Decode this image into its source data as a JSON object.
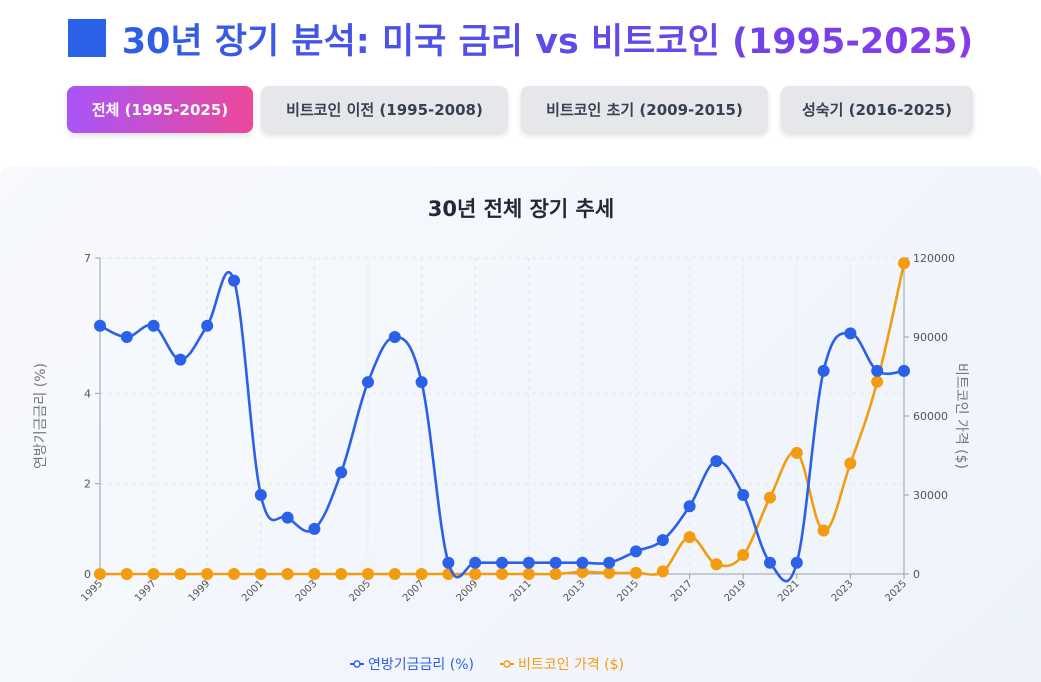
{
  "header": {
    "title": "30년 장기 분석: 미국 금리 vs 비트코인 (1995-2025)",
    "accent": "#2b61e8"
  },
  "tabs": [
    {
      "label": "전체 (1995-2025)",
      "active": true
    },
    {
      "label": "비트코인 이전 (1995-2008)",
      "active": false
    },
    {
      "label": "비트코인 초기 (2009-2015)",
      "active": false
    },
    {
      "label": "성숙기 (2016-2025)",
      "active": false
    }
  ],
  "chart_data": {
    "type": "line",
    "title": "30년 전체 장기 추세",
    "x": [
      1995,
      1996,
      1997,
      1998,
      1999,
      2000,
      2001,
      2002,
      2003,
      2004,
      2005,
      2006,
      2007,
      2008,
      2009,
      2010,
      2011,
      2012,
      2013,
      2014,
      2015,
      2016,
      2017,
      2018,
      2019,
      2020,
      2021,
      2022,
      2023,
      2024,
      2025
    ],
    "x_tick_labels": [
      "1995",
      "1997",
      "1999",
      "2001",
      "2003",
      "2005",
      "2007",
      "2009",
      "2011",
      "2013",
      "2015",
      "2017",
      "2019",
      "2021",
      "2023",
      "2025"
    ],
    "y_left": {
      "label": "연방기금금리 (%)",
      "range": [
        0,
        7
      ],
      "ticks": [
        "0",
        "2",
        "4",
        "7"
      ]
    },
    "y_right": {
      "label": "비트코인 가격 ($)",
      "range": [
        0,
        120000
      ],
      "ticks": [
        "0",
        "30000",
        "60000",
        "90000",
        "120000"
      ]
    },
    "series": [
      {
        "name": "연방기금금리 (%)",
        "axis": "left",
        "color": "#2b61e8",
        "values": [
          5.5,
          5.25,
          5.5,
          4.75,
          5.5,
          6.5,
          1.75,
          1.25,
          1.0,
          2.25,
          4.25,
          5.25,
          4.25,
          0.25,
          0.25,
          0.25,
          0.25,
          0.25,
          0.25,
          0.25,
          0.5,
          0.75,
          1.5,
          2.5,
          1.75,
          0.25,
          0.25,
          4.5,
          5.33,
          4.5,
          4.5
        ]
      },
      {
        "name": "비트코인 가격 ($)",
        "axis": "right",
        "color": "#f39c12",
        "values": [
          0,
          0,
          0,
          0,
          0,
          0,
          0,
          0,
          0,
          0,
          0,
          0,
          0,
          0,
          0,
          0,
          5,
          13,
          770,
          430,
          430,
          1000,
          14000,
          3700,
          7200,
          29000,
          46000,
          16500,
          42000,
          73000,
          118000
        ]
      }
    ],
    "legend_position": "bottom",
    "grid": true
  }
}
